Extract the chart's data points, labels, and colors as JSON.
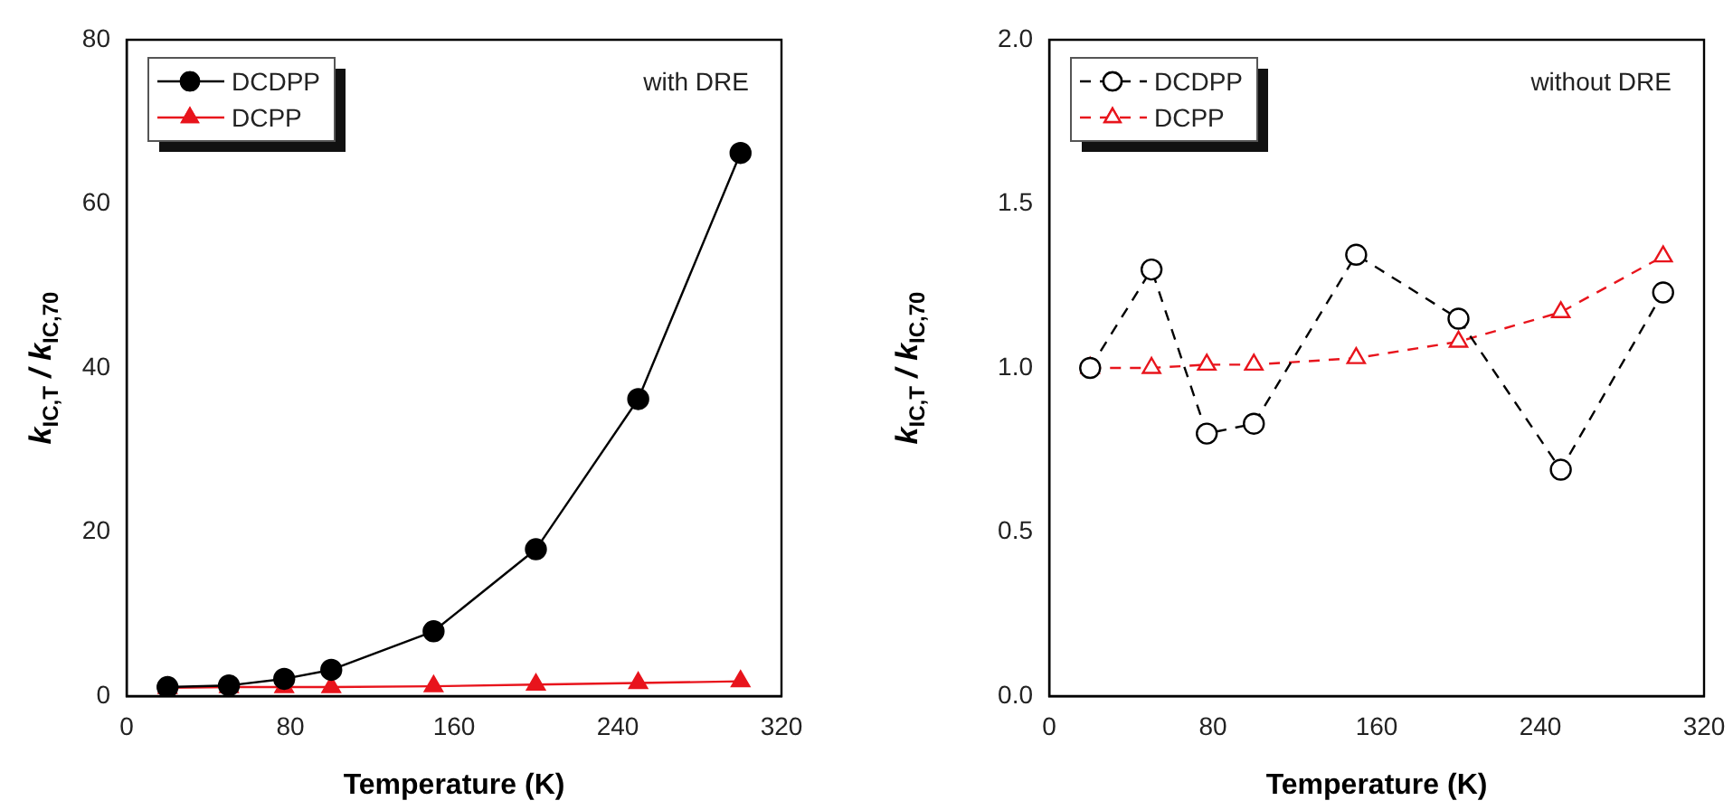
{
  "chart_data": [
    {
      "type": "line",
      "xlabel": "Temperature (K)",
      "ylabel": "k$_{IC,T}$ / k$_{IC,70}$",
      "annotations": [
        "with DRE"
      ],
      "legend": "top left",
      "line_style": "solid",
      "x": [
        20,
        50,
        77,
        100,
        150,
        200,
        250,
        300
      ],
      "xlim": [
        0,
        320
      ],
      "xticks": [
        0,
        80,
        160,
        240,
        320
      ],
      "ylim": [
        0,
        80
      ],
      "yticks": [
        0,
        20,
        40,
        60,
        80
      ],
      "series": [
        {
          "name": "DCDPP",
          "color": "#000000",
          "marker": "circle",
          "values": [
            1.1,
            1.3,
            2.1,
            3.2,
            7.9,
            17.9,
            36.2,
            66.2
          ]
        },
        {
          "name": "DCPP",
          "color": "#e8141c",
          "marker": "triangle",
          "values": [
            1.0,
            1.1,
            1.1,
            1.1,
            1.2,
            1.4,
            1.6,
            1.8
          ]
        }
      ]
    },
    {
      "type": "line",
      "xlabel": "Temperature (K)",
      "ylabel": "k$_{IC,T}$ / k$_{IC,70}$",
      "annotations": [
        "without DRE"
      ],
      "legend": "top left",
      "line_style": "dashed",
      "x": [
        20,
        50,
        77,
        100,
        150,
        200,
        250,
        300
      ],
      "xlim": [
        0,
        320
      ],
      "xticks": [
        0,
        80,
        160,
        240,
        320
      ],
      "ylim": [
        0,
        2
      ],
      "yticks": [
        {
          "value": 0,
          "label": "0.0"
        },
        {
          "value": 0.5,
          "label": "0.5"
        },
        {
          "value": 1,
          "label": "1.0"
        },
        {
          "value": 1.5,
          "label": "1.5"
        },
        {
          "value": 2,
          "label": "2.0"
        }
      ],
      "series": [
        {
          "name": "DCDPP",
          "color": "#000000",
          "marker": "circle",
          "values": [
            1.0,
            1.3,
            0.8,
            0.83,
            1.345,
            1.15,
            0.69,
            1.23
          ]
        },
        {
          "name": "DCPP",
          "color": "#e8141c",
          "marker": "triangle",
          "values": [
            1.0,
            1.0,
            1.01,
            1.01,
            1.03,
            1.08,
            1.17,
            1.34
          ]
        }
      ]
    }
  ]
}
